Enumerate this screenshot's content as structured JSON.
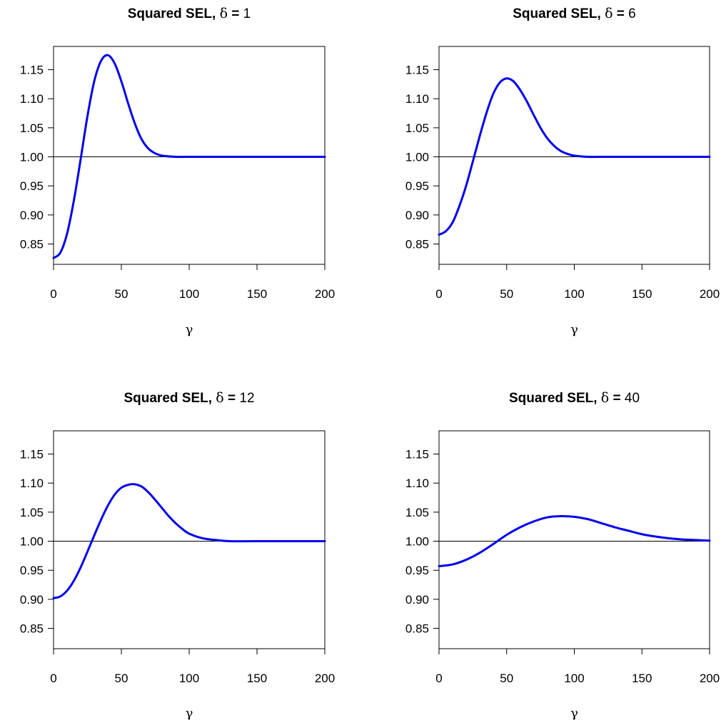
{
  "chart_data": [
    {
      "type": "line",
      "title": {
        "prefix": "Squared SEL, ",
        "symbol": "δ",
        "equals": " = ",
        "value": "1"
      },
      "xlabel": "γ",
      "ylabel": "",
      "xlim": [
        0,
        200
      ],
      "ylim": [
        0.815,
        1.19
      ],
      "xticks": [
        0,
        50,
        100,
        150,
        200
      ],
      "yticks": [
        "0.85",
        "0.90",
        "0.95",
        "1.00",
        "1.05",
        "1.10",
        "1.15"
      ],
      "reference_line": {
        "y": 1.0,
        "color": "#000000"
      },
      "series": [
        {
          "color": "#0000ee",
          "points": [
            [
              0,
              0.826
            ],
            [
              5,
              0.835
            ],
            [
              10,
              0.868
            ],
            [
              15,
              0.925
            ],
            [
              20,
              0.996
            ],
            [
              25,
              1.07
            ],
            [
              30,
              1.13
            ],
            [
              35,
              1.165
            ],
            [
              40,
              1.175
            ],
            [
              45,
              1.161
            ],
            [
              50,
              1.13
            ],
            [
              55,
              1.092
            ],
            [
              60,
              1.057
            ],
            [
              65,
              1.03
            ],
            [
              70,
              1.014
            ],
            [
              75,
              1.006
            ],
            [
              80,
              1.002
            ],
            [
              90,
              1.0
            ],
            [
              100,
              1.0
            ],
            [
              150,
              1.0
            ],
            [
              200,
              1.0
            ]
          ]
        }
      ]
    },
    {
      "type": "line",
      "title": {
        "prefix": "Squared SEL, ",
        "symbol": "δ",
        "equals": " = ",
        "value": "6"
      },
      "xlabel": "γ",
      "ylabel": "",
      "xlim": [
        0,
        200
      ],
      "ylim": [
        0.815,
        1.19
      ],
      "xticks": [
        0,
        50,
        100,
        150,
        200
      ],
      "yticks": [
        "0.85",
        "0.90",
        "0.95",
        "1.00",
        "1.05",
        "1.10",
        "1.15"
      ],
      "reference_line": {
        "y": 1.0,
        "color": "#000000"
      },
      "series": [
        {
          "color": "#0000ee",
          "points": [
            [
              0,
              0.866
            ],
            [
              5,
              0.872
            ],
            [
              10,
              0.887
            ],
            [
              15,
              0.915
            ],
            [
              20,
              0.95
            ],
            [
              25,
              0.992
            ],
            [
              30,
              1.035
            ],
            [
              35,
              1.075
            ],
            [
              40,
              1.108
            ],
            [
              45,
              1.128
            ],
            [
              50,
              1.135
            ],
            [
              55,
              1.13
            ],
            [
              60,
              1.115
            ],
            [
              65,
              1.095
            ],
            [
              70,
              1.072
            ],
            [
              75,
              1.05
            ],
            [
              80,
              1.032
            ],
            [
              85,
              1.019
            ],
            [
              90,
              1.01
            ],
            [
              95,
              1.005
            ],
            [
              100,
              1.002
            ],
            [
              110,
              1.0
            ],
            [
              120,
              1.0
            ],
            [
              150,
              1.0
            ],
            [
              200,
              1.0
            ]
          ]
        }
      ]
    },
    {
      "type": "line",
      "title": {
        "prefix": "Squared SEL, ",
        "symbol": "δ",
        "equals": " = ",
        "value": "12"
      },
      "xlabel": "γ",
      "ylabel": "",
      "xlim": [
        0,
        200
      ],
      "ylim": [
        0.815,
        1.19
      ],
      "xticks": [
        0,
        50,
        100,
        150,
        200
      ],
      "yticks": [
        "0.85",
        "0.90",
        "0.95",
        "1.00",
        "1.05",
        "1.10",
        "1.15"
      ],
      "reference_line": {
        "y": 1.0,
        "color": "#000000"
      },
      "series": [
        {
          "color": "#0000ee",
          "points": [
            [
              0,
              0.902
            ],
            [
              5,
              0.905
            ],
            [
              10,
              0.915
            ],
            [
              15,
              0.932
            ],
            [
              20,
              0.955
            ],
            [
              25,
              0.982
            ],
            [
              30,
              1.01
            ],
            [
              35,
              1.037
            ],
            [
              40,
              1.061
            ],
            [
              45,
              1.08
            ],
            [
              50,
              1.092
            ],
            [
              55,
              1.097
            ],
            [
              60,
              1.098
            ],
            [
              65,
              1.094
            ],
            [
              70,
              1.084
            ],
            [
              75,
              1.071
            ],
            [
              80,
              1.057
            ],
            [
              85,
              1.043
            ],
            [
              90,
              1.031
            ],
            [
              95,
              1.021
            ],
            [
              100,
              1.013
            ],
            [
              110,
              1.005
            ],
            [
              120,
              1.002
            ],
            [
              130,
              1.0
            ],
            [
              150,
              1.0
            ],
            [
              200,
              1.0
            ]
          ]
        }
      ]
    },
    {
      "type": "line",
      "title": {
        "prefix": "Squared SEL, ",
        "symbol": "δ",
        "equals": " = ",
        "value": "40"
      },
      "xlabel": "γ",
      "ylabel": "",
      "xlim": [
        0,
        200
      ],
      "ylim": [
        0.815,
        1.19
      ],
      "xticks": [
        0,
        50,
        100,
        150,
        200
      ],
      "yticks": [
        "0.85",
        "0.90",
        "0.95",
        "1.00",
        "1.05",
        "1.10",
        "1.15"
      ],
      "reference_line": {
        "y": 1.0,
        "color": "#000000"
      },
      "series": [
        {
          "color": "#0000ee",
          "points": [
            [
              0,
              0.957
            ],
            [
              10,
              0.96
            ],
            [
              20,
              0.968
            ],
            [
              30,
              0.98
            ],
            [
              40,
              0.995
            ],
            [
              50,
              1.011
            ],
            [
              60,
              1.024
            ],
            [
              70,
              1.034
            ],
            [
              80,
              1.041
            ],
            [
              90,
              1.043
            ],
            [
              100,
              1.042
            ],
            [
              110,
              1.038
            ],
            [
              120,
              1.031
            ],
            [
              130,
              1.024
            ],
            [
              140,
              1.018
            ],
            [
              150,
              1.012
            ],
            [
              160,
              1.008
            ],
            [
              170,
              1.005
            ],
            [
              180,
              1.003
            ],
            [
              190,
              1.002
            ],
            [
              200,
              1.001
            ]
          ]
        }
      ]
    }
  ]
}
